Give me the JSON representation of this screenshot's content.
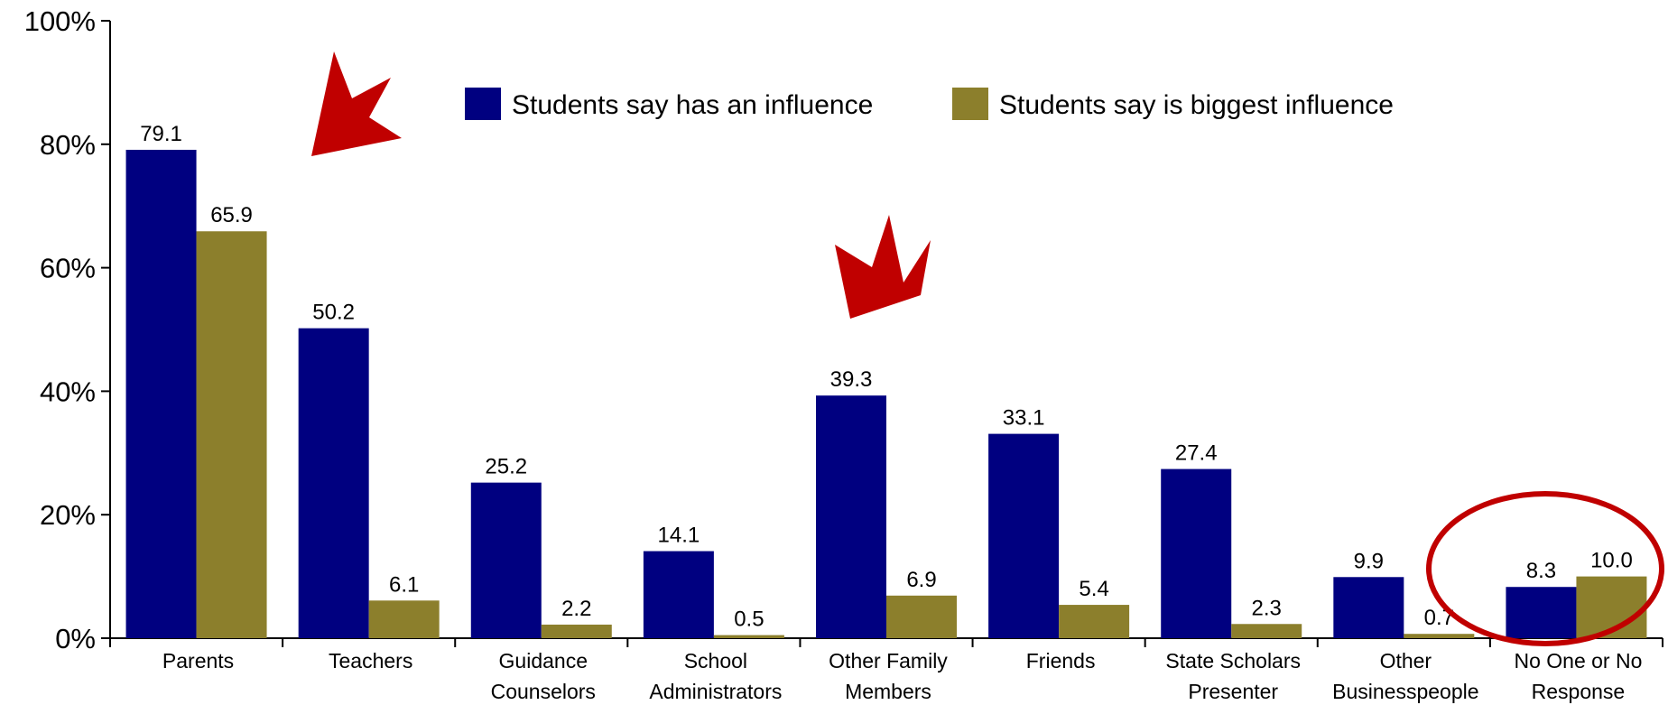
{
  "chart_data": {
    "type": "bar",
    "categories": [
      [
        "Parents"
      ],
      [
        "Teachers"
      ],
      [
        "Guidance",
        "Counselors"
      ],
      [
        "School",
        "Administrators"
      ],
      [
        "Other Family",
        "Members"
      ],
      [
        "Friends"
      ],
      [
        "State Scholars",
        "Presenter"
      ],
      [
        "Other",
        "Businesspeople"
      ],
      [
        "No One or No",
        "Response"
      ]
    ],
    "series": [
      {
        "name": "Students say has an influence",
        "color": "#000080",
        "values": [
          79.1,
          50.2,
          25.2,
          14.1,
          39.3,
          33.1,
          27.4,
          9.9,
          8.3
        ],
        "labels": [
          "79.1",
          "50.2",
          "25.2",
          "14.1",
          "39.3",
          "33.1",
          "27.4",
          "9.9",
          "8.3"
        ]
      },
      {
        "name": "Students say is biggest influence",
        "color": "#8C7F2C",
        "values": [
          65.9,
          6.1,
          2.2,
          0.5,
          6.9,
          5.4,
          2.3,
          0.7,
          10.0
        ],
        "labels": [
          "65.9",
          "6.1",
          "2.2",
          "0.5",
          "6.9",
          "5.4",
          "2.3",
          "0.7",
          "10.0"
        ]
      }
    ],
    "ylim": [
      0,
      100
    ],
    "yticks": [
      0,
      20,
      40,
      60,
      80,
      100
    ],
    "ytick_labels": [
      "0%",
      "20%",
      "40%",
      "60%",
      "80%",
      "100%"
    ],
    "legend_position": "top-center",
    "grid": false,
    "annotations": [
      {
        "type": "arrow",
        "color": "#C00000",
        "points_to": "Parents"
      },
      {
        "type": "arrow",
        "color": "#C00000",
        "points_to": "Other Family Members"
      },
      {
        "type": "ellipse",
        "color": "#C00000",
        "highlights": "No One or No Response"
      }
    ]
  }
}
